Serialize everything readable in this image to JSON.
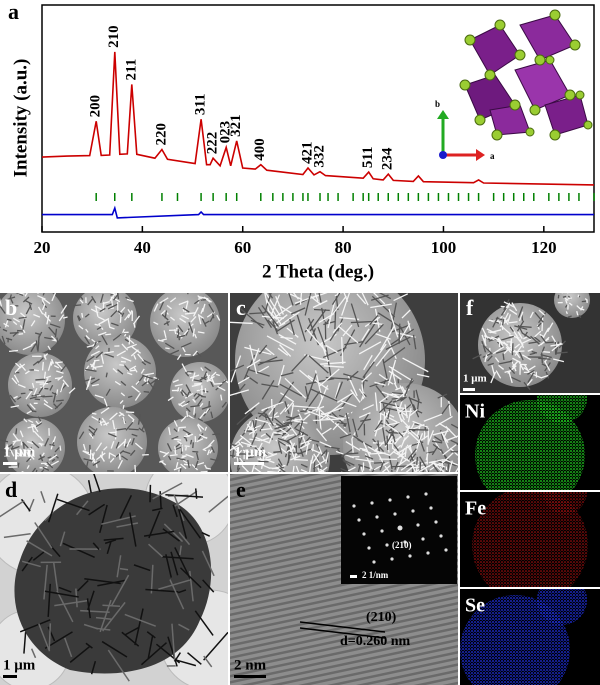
{
  "chart_data": {
    "type": "line",
    "panel_label": "a",
    "xlabel": "2 Theta (deg.)",
    "ylabel": "Intensity (a.u.)",
    "xlim": [
      20,
      130
    ],
    "xticks": [
      20,
      40,
      60,
      80,
      100,
      120
    ],
    "ylim": [
      0,
      100
    ],
    "series": [
      {
        "color": "#cc0000",
        "x": [
          20,
          25,
          29.5,
          30.8,
          31.8,
          33.5,
          34.5,
          35.5,
          37,
          37.9,
          38.9,
          42.5,
          43.9,
          45,
          50.5,
          51.7,
          52.8,
          53.5,
          54.1,
          55.5,
          56.7,
          57.6,
          58.8,
          60,
          62.5,
          63.6,
          64.8,
          72,
          73,
          74.2,
          75.4,
          76.5,
          84,
          85.1,
          86,
          88,
          89,
          90,
          94,
          95,
          96,
          106,
          107,
          108,
          130
        ],
        "values": [
          34.5,
          35,
          35.2,
          51,
          35.3,
          35.5,
          83,
          35.8,
          36,
          68,
          35.8,
          34,
          38,
          33.5,
          31.5,
          52,
          31,
          31,
          34,
          30.5,
          39,
          30.5,
          42,
          29.5,
          29,
          31,
          28.5,
          26.5,
          29.5,
          26.3,
          27.8,
          26,
          24.8,
          27.6,
          24.5,
          24,
          26.7,
          23.8,
          23.3,
          25.8,
          23.2,
          22.7,
          24,
          22.6,
          21.7
        ]
      },
      {
        "color": "#0000cc",
        "x": [
          20,
          34,
          34.5,
          35,
          51.2,
          51.7,
          52.2,
          130
        ],
        "values": [
          8,
          8,
          11,
          6.5,
          8,
          9.2,
          8,
          8
        ]
      }
    ],
    "reference_ticks": {
      "color": "#008000",
      "x": [
        30.8,
        34.5,
        37.9,
        43.9,
        47,
        51.7,
        54.1,
        56.7,
        58.8,
        63.6,
        66,
        68,
        70,
        72,
        73,
        75.4,
        77,
        79,
        82,
        84,
        85.1,
        87,
        89,
        91,
        93,
        95,
        97,
        99,
        101,
        103,
        105,
        107,
        110,
        112,
        114,
        116,
        118,
        121,
        123,
        125,
        127,
        130
      ]
    },
    "peak_labels": [
      {
        "label": "200",
        "x": 30.8
      },
      {
        "label": "210",
        "x": 34.5
      },
      {
        "label": "211",
        "x": 37.9
      },
      {
        "label": "220",
        "x": 43.9
      },
      {
        "label": "311",
        "x": 51.7
      },
      {
        "label": "222",
        "x": 54.1
      },
      {
        "label": "023",
        "x": 56.7
      },
      {
        "label": "321",
        "x": 58.8
      },
      {
        "label": "400",
        "x": 63.6
      },
      {
        "label": "421",
        "x": 73
      },
      {
        "label": "332",
        "x": 75.4
      },
      {
        "label": "511",
        "x": 85.1
      },
      {
        "label": "234",
        "x": 89
      }
    ],
    "inset_axes": {
      "b": "b",
      "a": "a"
    }
  },
  "panels": {
    "b": {
      "label": "b",
      "scale_bar": "1 μm"
    },
    "c": {
      "label": "c",
      "scale_bar": "1 μm"
    },
    "d": {
      "label": "d",
      "scale_bar": "1 μm"
    },
    "e": {
      "label": "e",
      "scale_bar": "2 nm",
      "plane": "(210)",
      "d_spacing": "d=0.260 nm",
      "inset_plane": "(210)",
      "inset_scale_bar": "2 1/nm"
    },
    "f": {
      "label": "f",
      "scale_bar": "1 μm",
      "maps": [
        "Ni",
        "Fe",
        "Se"
      ]
    }
  }
}
